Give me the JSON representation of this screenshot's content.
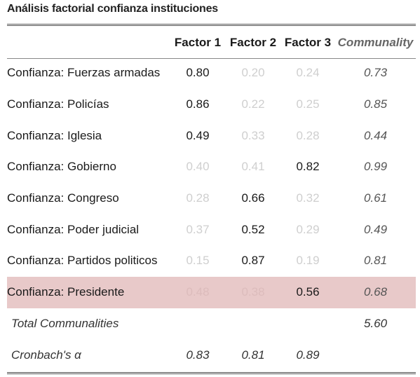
{
  "title": "Análisis factorial confianza instituciones",
  "headers": [
    "",
    "Factor 1",
    "Factor 2",
    "Factor 3",
    "Communality"
  ],
  "rows": [
    {
      "label": "Confianza: Fuerzas armadas",
      "f1": "0.80",
      "f2": "0.20",
      "f3": "0.24",
      "com": "0.73",
      "strong": [
        true,
        false,
        false
      ]
    },
    {
      "label": "Confianza: Policías",
      "f1": "0.86",
      "f2": "0.22",
      "f3": "0.25",
      "com": "0.85",
      "strong": [
        true,
        false,
        false
      ]
    },
    {
      "label": "Confianza: Iglesia",
      "f1": "0.49",
      "f2": "0.33",
      "f3": "0.28",
      "com": "0.44",
      "strong": [
        true,
        false,
        false
      ]
    },
    {
      "label": "Confianza: Gobierno",
      "f1": "0.40",
      "f2": "0.41",
      "f3": "0.82",
      "com": "0.99",
      "strong": [
        false,
        false,
        true
      ]
    },
    {
      "label": "Confianza: Congreso",
      "f1": "0.28",
      "f2": "0.66",
      "f3": "0.32",
      "com": "0.61",
      "strong": [
        false,
        true,
        false
      ]
    },
    {
      "label": "Confianza: Poder judicial",
      "f1": "0.37",
      "f2": "0.52",
      "f3": "0.29",
      "com": "0.49",
      "strong": [
        false,
        true,
        false
      ]
    },
    {
      "label": "Confianza: Partidos politicos",
      "f1": "0.15",
      "f2": "0.87",
      "f3": "0.19",
      "com": "0.81",
      "strong": [
        false,
        true,
        false
      ]
    },
    {
      "label": "Confianza: Presidente",
      "f1": "0.48",
      "f2": "0.38",
      "f3": "0.56",
      "com": "0.68",
      "strong": [
        false,
        false,
        true
      ],
      "highlight": true
    }
  ],
  "total_communalities": {
    "label": "Total Communalities",
    "value": "5.60"
  },
  "cronbach": {
    "label": "Cronbach's α",
    "f1": "0.83",
    "f2": "0.81",
    "f3": "0.89"
  },
  "colors": {
    "highlight_row": "#e8c9c9",
    "faded_text": "#cfcfcf"
  }
}
